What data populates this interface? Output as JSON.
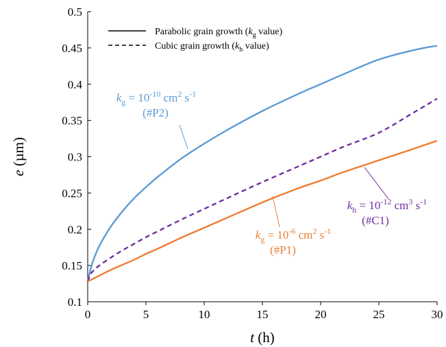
{
  "chart_data": {
    "type": "line",
    "xlabel": {
      "var": "t",
      "unit": " (h)"
    },
    "ylabel": {
      "var": "e",
      "unit": " (µm)"
    },
    "xlim": [
      0,
      30
    ],
    "ylim": [
      0.1,
      0.5
    ],
    "xticks": [
      0,
      5,
      10,
      15,
      20,
      25,
      30
    ],
    "yticks": [
      0.1,
      0.15,
      0.2,
      0.25,
      0.3,
      0.35,
      0.4,
      0.45,
      0.5
    ],
    "xtick_labels": [
      "0",
      "5",
      "10",
      "15",
      "20",
      "25",
      "30"
    ],
    "ytick_labels": [
      "0.1",
      "0.15",
      "0.2",
      "0.25",
      "0.3",
      "0.35",
      "0.4",
      "0.45",
      "0.5"
    ],
    "grid": false,
    "legend": {
      "placement": "top-left",
      "entries": [
        {
          "style": "solid",
          "pre": "Parabolic grain growth (",
          "sym": "k",
          "sub": "g",
          "post": " value)"
        },
        {
          "style": "dashed",
          "pre": "Cubic grain growth (",
          "sym": "k",
          "sub": "h",
          "post": " value)"
        }
      ]
    },
    "series": [
      {
        "id": "P2",
        "style": "solid",
        "color": "#5b9bd5",
        "x": [
          0,
          0.25,
          0.5,
          1,
          2,
          3,
          4,
          5,
          6,
          8,
          10,
          12,
          15,
          18,
          20,
          22,
          25,
          28,
          30
        ],
        "y": [
          0.128,
          0.145,
          0.158,
          0.177,
          0.204,
          0.225,
          0.243,
          0.258,
          0.272,
          0.297,
          0.318,
          0.337,
          0.363,
          0.386,
          0.4,
          0.414,
          0.434,
          0.447,
          0.453
        ]
      },
      {
        "id": "C1",
        "style": "dashed",
        "color": "#7030a0",
        "x": [
          0,
          0.25,
          0.5,
          1,
          2,
          3,
          4,
          5,
          6,
          8,
          10,
          12,
          15,
          18,
          20,
          22,
          25,
          28,
          30
        ],
        "y": [
          0.128,
          0.138,
          0.143,
          0.15,
          0.161,
          0.171,
          0.18,
          0.189,
          0.197,
          0.213,
          0.228,
          0.243,
          0.265,
          0.286,
          0.3,
          0.314,
          0.333,
          0.361,
          0.38
        ]
      },
      {
        "id": "P1",
        "style": "solid",
        "color": "#ed7d31",
        "x": [
          0,
          0.25,
          0.5,
          1,
          2,
          3,
          4,
          5,
          6,
          8,
          10,
          12,
          15,
          18,
          20,
          22,
          25,
          28,
          30
        ],
        "y": [
          0.128,
          0.13,
          0.132,
          0.136,
          0.144,
          0.151,
          0.158,
          0.166,
          0.173,
          0.188,
          0.202,
          0.216,
          0.237,
          0.256,
          0.267,
          0.279,
          0.295,
          0.311,
          0.322
        ]
      }
    ],
    "annotations": [
      {
        "series": "P2",
        "sym": "k",
        "sub": "g",
        "value": " = 10",
        "exp": "-10",
        "unit": " cm",
        "unit_exp": "2",
        "unit2": " s",
        "unit2_exp": "-1",
        "tag": "(#P2)",
        "color": "#5b9bd5",
        "anchor_t": 10
      },
      {
        "series": "P1",
        "sym": "k",
        "sub": "g",
        "value": " = 10",
        "exp": "-6",
        "unit": " cm",
        "unit_exp": "2",
        "unit2": " s",
        "unit2_exp": "-1",
        "tag": "(#P1)",
        "color": "#ed7d31",
        "anchor_t": 16
      },
      {
        "series": "C1",
        "sym": "k",
        "sub": "h",
        "value": " = 10",
        "exp": "-12",
        "unit": " cm",
        "unit_exp": "3",
        "unit2": " s",
        "unit2_exp": "-1",
        "tag": "(#C1)",
        "color": "#7030a0",
        "anchor_t": 24
      }
    ]
  }
}
